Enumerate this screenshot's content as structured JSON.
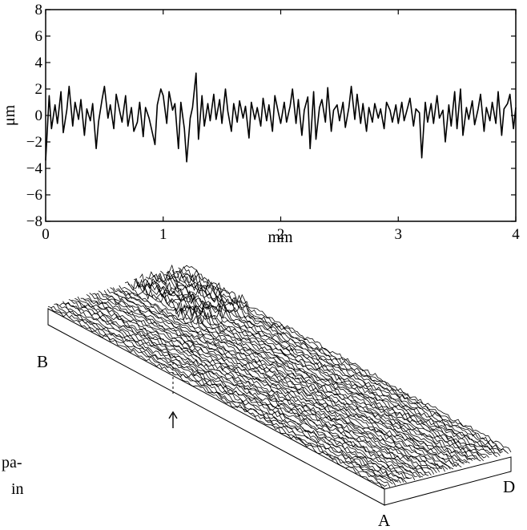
{
  "chart_data": [
    {
      "type": "line",
      "title": "",
      "xlabel": "mm",
      "ylabel": "μm",
      "xlim": [
        0,
        4
      ],
      "ylim": [
        -8,
        8
      ],
      "x_ticks": [
        0,
        1,
        2,
        3,
        4
      ],
      "x_tick_labels": [
        "0",
        "1",
        "2",
        "3",
        "4"
      ],
      "y_ticks": [
        -8,
        -6,
        -4,
        -2,
        0,
        2,
        4,
        6,
        8
      ],
      "y_tick_labels": [
        "−8",
        "−6",
        "−4",
        "−2",
        "0",
        "2",
        "4",
        "6",
        "8"
      ],
      "grid": false,
      "legend": "none",
      "color": "#000000",
      "series": [
        {
          "x": [
            0.0,
            0.03,
            0.05,
            0.08,
            0.1,
            0.13,
            0.15,
            0.18,
            0.2,
            0.23,
            0.25,
            0.28,
            0.3,
            0.33,
            0.35,
            0.38,
            0.4,
            0.43,
            0.45,
            0.48,
            0.5,
            0.53,
            0.55,
            0.58,
            0.6,
            0.63,
            0.65,
            0.68,
            0.7,
            0.73,
            0.75,
            0.78,
            0.8,
            0.83,
            0.85,
            0.88,
            0.9,
            0.93,
            0.95,
            0.98,
            1.0,
            1.03,
            1.05,
            1.08,
            1.1,
            1.13,
            1.15,
            1.18,
            1.2,
            1.23,
            1.25,
            1.28,
            1.3,
            1.33,
            1.35,
            1.38,
            1.4,
            1.43,
            1.45,
            1.48,
            1.5,
            1.53,
            1.55,
            1.58,
            1.6,
            1.63,
            1.65,
            1.68,
            1.7,
            1.73,
            1.75,
            1.78,
            1.8,
            1.83,
            1.85,
            1.88,
            1.9,
            1.93,
            1.95,
            1.98,
            2.0,
            2.03,
            2.05,
            2.08,
            2.1,
            2.13,
            2.15,
            2.18,
            2.2,
            2.23,
            2.25,
            2.28,
            2.3,
            2.33,
            2.35,
            2.38,
            2.4,
            2.43,
            2.45,
            2.48,
            2.5,
            2.53,
            2.55,
            2.58,
            2.6,
            2.63,
            2.65,
            2.68,
            2.7,
            2.73,
            2.75,
            2.78,
            2.8,
            2.83,
            2.85,
            2.88,
            2.9,
            2.93,
            2.95,
            2.98,
            3.0,
            3.03,
            3.05,
            3.08,
            3.1,
            3.13,
            3.15,
            3.18,
            3.2,
            3.23,
            3.25,
            3.28,
            3.3,
            3.33,
            3.35,
            3.38,
            3.4,
            3.43,
            3.45,
            3.48,
            3.5,
            3.53,
            3.55,
            3.58,
            3.6,
            3.63,
            3.65,
            3.68,
            3.7,
            3.73,
            3.75,
            3.78,
            3.8,
            3.83,
            3.85,
            3.88,
            3.9,
            3.93,
            3.95,
            3.98,
            4.0
          ],
          "values": [
            -3.4,
            1.5,
            -1.0,
            0.8,
            -0.6,
            1.8,
            -1.3,
            0.4,
            2.2,
            -0.8,
            1.0,
            -0.3,
            1.2,
            -1.5,
            0.5,
            -0.4,
            0.9,
            -2.5,
            -0.5,
            1.2,
            2.2,
            -0.2,
            0.8,
            -1.0,
            1.6,
            0.3,
            -0.5,
            1.5,
            -0.8,
            0.6,
            -1.2,
            -0.5,
            1.0,
            -1.6,
            0.6,
            -0.2,
            -1.0,
            -2.2,
            0.8,
            2.0,
            1.5,
            -0.6,
            1.8,
            0.4,
            0.9,
            -2.5,
            1.0,
            -1.0,
            -3.5,
            -0.2,
            0.6,
            3.2,
            -1.8,
            1.5,
            -0.8,
            0.9,
            -0.4,
            1.6,
            -0.3,
            1.2,
            -0.6,
            2.0,
            0.3,
            -1.2,
            0.9,
            -0.5,
            1.1,
            -0.2,
            0.7,
            -1.7,
            1.0,
            -0.3,
            0.6,
            -0.8,
            1.3,
            -0.4,
            0.8,
            -1.2,
            1.5,
            0.2,
            -0.6,
            1.0,
            -0.5,
            0.7,
            2.0,
            -0.6,
            1.2,
            -1.5,
            0.4,
            1.4,
            -2.5,
            1.8,
            -1.8,
            0.6,
            1.2,
            -0.5,
            2.1,
            -1.2,
            0.4,
            0.8,
            -0.4,
            1.0,
            -0.9,
            0.6,
            2.2,
            -0.3,
            1.6,
            -0.6,
            0.9,
            -1.2,
            0.6,
            -0.5,
            0.9,
            -0.2,
            0.5,
            -1.0,
            1.0,
            0.4,
            -0.5,
            0.8,
            -0.6,
            1.0,
            -0.4,
            0.6,
            1.3,
            -0.8,
            0.5,
            0.2,
            -3.2,
            1.0,
            -0.5,
            0.9,
            -0.6,
            1.5,
            -0.2,
            0.4,
            -2.0,
            0.8,
            -0.8,
            1.8,
            -1.0,
            2.0,
            -1.5,
            0.6,
            -0.3,
            1.1,
            -0.7,
            0.5,
            1.6,
            -1.2,
            0.6,
            -0.4,
            1.0,
            -0.6,
            1.8,
            -1.5,
            0.5,
            0.9,
            1.6,
            -1.0,
            0.6
          ]
        }
      ]
    }
  ],
  "surface": {
    "corner_labels": {
      "a": "A",
      "b": "B",
      "d": "D"
    },
    "arrow_icon": "up-arrow-icon"
  },
  "text_fragment": {
    "line1": "pa-",
    "line2": "in"
  }
}
